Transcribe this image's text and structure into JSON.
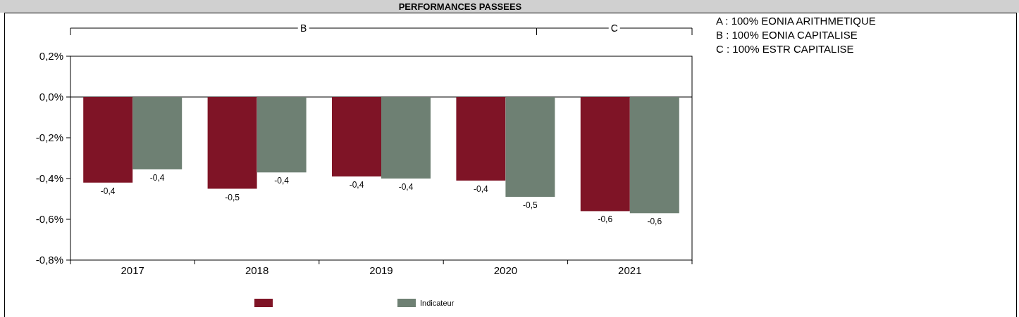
{
  "chart_data": {
    "type": "bar",
    "title": "PERFORMANCES PASSEES",
    "categories": [
      "2017",
      "2018",
      "2019",
      "2020",
      "2021"
    ],
    "series": [
      {
        "color": "#7f1426",
        "values": [
          -0.42,
          -0.45,
          -0.39,
          -0.41,
          -0.56
        ],
        "value_labels": [
          "-0,4",
          "-0,5",
          "-0,4",
          "-0,4",
          "-0,6"
        ]
      },
      {
        "name": "Indicateur",
        "color": "#6e8073",
        "values": [
          -0.355,
          -0.37,
          -0.4,
          -0.49,
          -0.57
        ],
        "value_labels": [
          "-0,4",
          "-0,4",
          "-0,4",
          "-0,5",
          "-0,6"
        ]
      }
    ],
    "ylim": [
      -0.8,
      0.2
    ],
    "yticks": [
      {
        "value": -0.8,
        "label": "-0,8%"
      },
      {
        "value": -0.6,
        "label": "-0,6%"
      },
      {
        "value": -0.4,
        "label": "-0,4%"
      },
      {
        "value": -0.2,
        "label": "-0,2%"
      },
      {
        "value": 0,
        "label": "0,0%"
      },
      {
        "value": 0.2,
        "label": "0,2%"
      }
    ],
    "legend": "bottom",
    "annotations": [
      "A : 100% EONIA ARITHMETIQUE",
      "B : 100% EONIA CAPITALISE",
      "C : 100% ESTR CAPITALISE",
      "B",
      "C"
    ]
  }
}
